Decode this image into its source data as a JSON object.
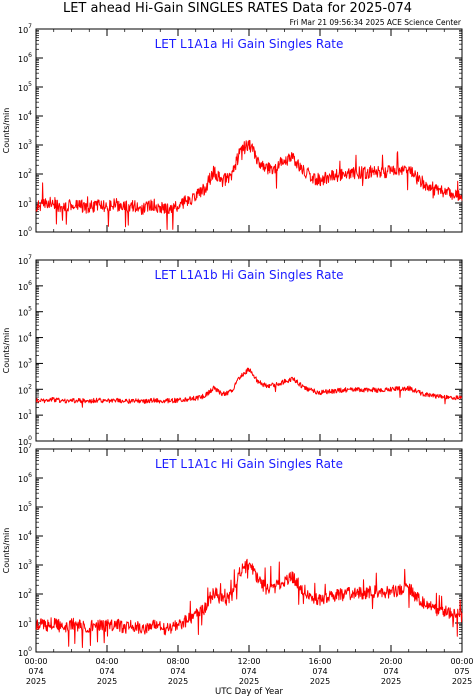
{
  "header": {
    "title": "LET ahead Hi-Gain SINGLES RATES Data for 2025-074",
    "timestamp": "Fri Mar 21 09:56:34 2025 ACE Science Center"
  },
  "colors": {
    "series": "#ff0000",
    "panel_title": "#1a1aff",
    "axes": "#000000"
  },
  "chart_data": [
    {
      "type": "line",
      "title": "LET L1A1a Hi Gain Singles Rate",
      "ylabel": "Counts/min",
      "yscale": "log",
      "ylim": [
        1,
        10000000
      ],
      "xlim_hours": [
        0,
        24
      ],
      "series": [
        {
          "values": [
            [
              0.0,
              8
            ],
            [
              0.5,
              9
            ],
            [
              1.0,
              10
            ],
            [
              1.5,
              7
            ],
            [
              2.0,
              9
            ],
            [
              2.5,
              8
            ],
            [
              3.0,
              7
            ],
            [
              3.5,
              9
            ],
            [
              4.0,
              8
            ],
            [
              4.5,
              9
            ],
            [
              5.0,
              7
            ],
            [
              5.5,
              8
            ],
            [
              6.0,
              6
            ],
            [
              6.5,
              9
            ],
            [
              7.0,
              7
            ],
            [
              7.5,
              6
            ],
            [
              8.0,
              8
            ],
            [
              8.5,
              12
            ],
            [
              9.0,
              18
            ],
            [
              9.5,
              30
            ],
            [
              10.0,
              120
            ],
            [
              10.5,
              60
            ],
            [
              11.0,
              80
            ],
            [
              11.5,
              600
            ],
            [
              12.0,
              1100
            ],
            [
              12.5,
              300
            ],
            [
              13.0,
              150
            ],
            [
              13.5,
              180
            ],
            [
              14.0,
              300
            ],
            [
              14.5,
              350
            ],
            [
              15.0,
              150
            ],
            [
              15.5,
              80
            ],
            [
              16.0,
              60
            ],
            [
              16.5,
              80
            ],
            [
              17.0,
              90
            ],
            [
              17.5,
              100
            ],
            [
              18.0,
              110
            ],
            [
              18.5,
              110
            ],
            [
              19.0,
              120
            ],
            [
              19.5,
              110
            ],
            [
              20.0,
              120
            ],
            [
              20.5,
              140
            ],
            [
              21.0,
              150
            ],
            [
              21.5,
              70
            ],
            [
              22.0,
              40
            ],
            [
              22.5,
              30
            ],
            [
              23.0,
              25
            ],
            [
              23.5,
              20
            ],
            [
              24.0,
              18
            ]
          ]
        }
      ]
    },
    {
      "type": "line",
      "title": "LET L1A1b Hi Gain Singles Rate",
      "ylabel": "Counts/min",
      "yscale": "log",
      "ylim": [
        1,
        10000000
      ],
      "xlim_hours": [
        0,
        24
      ],
      "series": [
        {
          "values": [
            [
              0.0,
              38
            ],
            [
              0.5,
              36
            ],
            [
              1.0,
              40
            ],
            [
              1.5,
              35
            ],
            [
              2.0,
              37
            ],
            [
              2.5,
              36
            ],
            [
              3.0,
              35
            ],
            [
              3.5,
              38
            ],
            [
              4.0,
              36
            ],
            [
              4.5,
              37
            ],
            [
              5.0,
              34
            ],
            [
              5.5,
              36
            ],
            [
              6.0,
              34
            ],
            [
              6.5,
              38
            ],
            [
              7.0,
              35
            ],
            [
              7.5,
              36
            ],
            [
              8.0,
              37
            ],
            [
              8.5,
              40
            ],
            [
              9.0,
              45
            ],
            [
              9.5,
              55
            ],
            [
              10.0,
              110
            ],
            [
              10.5,
              65
            ],
            [
              11.0,
              80
            ],
            [
              11.5,
              300
            ],
            [
              12.0,
              600
            ],
            [
              12.5,
              200
            ],
            [
              13.0,
              130
            ],
            [
              13.5,
              150
            ],
            [
              14.0,
              200
            ],
            [
              14.5,
              250
            ],
            [
              15.0,
              130
            ],
            [
              15.5,
              90
            ],
            [
              16.0,
              75
            ],
            [
              16.5,
              80
            ],
            [
              17.0,
              90
            ],
            [
              17.5,
              95
            ],
            [
              18.0,
              100
            ],
            [
              18.5,
              90
            ],
            [
              19.0,
              95
            ],
            [
              19.5,
              90
            ],
            [
              20.0,
              100
            ],
            [
              20.5,
              105
            ],
            [
              21.0,
              110
            ],
            [
              21.5,
              80
            ],
            [
              22.0,
              60
            ],
            [
              22.5,
              55
            ],
            [
              23.0,
              50
            ],
            [
              23.5,
              48
            ],
            [
              24.0,
              45
            ]
          ]
        }
      ]
    },
    {
      "type": "line",
      "title": "LET L1A1c Hi Gain Singles Rate",
      "ylabel": "Counts/min",
      "yscale": "log",
      "ylim": [
        1,
        10000000
      ],
      "xlim_hours": [
        0,
        24
      ],
      "series": [
        {
          "values": [
            [
              0.0,
              9
            ],
            [
              0.5,
              8
            ],
            [
              1.0,
              10
            ],
            [
              1.5,
              7
            ],
            [
              2.0,
              9
            ],
            [
              2.5,
              8
            ],
            [
              3.0,
              7
            ],
            [
              3.5,
              9
            ],
            [
              4.0,
              8
            ],
            [
              4.5,
              9
            ],
            [
              5.0,
              7
            ],
            [
              5.5,
              8
            ],
            [
              6.0,
              6
            ],
            [
              6.5,
              9
            ],
            [
              7.0,
              7
            ],
            [
              7.5,
              6
            ],
            [
              8.0,
              8
            ],
            [
              8.5,
              12
            ],
            [
              9.0,
              18
            ],
            [
              9.5,
              30
            ],
            [
              10.0,
              120
            ],
            [
              10.5,
              60
            ],
            [
              11.0,
              80
            ],
            [
              11.5,
              600
            ],
            [
              12.0,
              1100
            ],
            [
              12.5,
              300
            ],
            [
              13.0,
              150
            ],
            [
              13.5,
              180
            ],
            [
              14.0,
              300
            ],
            [
              14.5,
              380
            ],
            [
              15.0,
              150
            ],
            [
              15.5,
              80
            ],
            [
              16.0,
              60
            ],
            [
              16.5,
              80
            ],
            [
              17.0,
              90
            ],
            [
              17.5,
              100
            ],
            [
              18.0,
              110
            ],
            [
              18.5,
              110
            ],
            [
              19.0,
              120
            ],
            [
              19.5,
              110
            ],
            [
              20.0,
              120
            ],
            [
              20.5,
              140
            ],
            [
              21.0,
              170
            ],
            [
              21.5,
              70
            ],
            [
              22.0,
              40
            ],
            [
              22.5,
              30
            ],
            [
              23.0,
              25
            ],
            [
              23.5,
              20
            ],
            [
              24.0,
              18
            ]
          ]
        }
      ]
    }
  ],
  "y_ticks": [
    {
      "exp": 0,
      "label": "10",
      "sup": "0"
    },
    {
      "exp": 1,
      "label": "10",
      "sup": "1"
    },
    {
      "exp": 2,
      "label": "10",
      "sup": "2"
    },
    {
      "exp": 3,
      "label": "10",
      "sup": "3"
    },
    {
      "exp": 4,
      "label": "10",
      "sup": "4"
    },
    {
      "exp": 5,
      "label": "10",
      "sup": "5"
    },
    {
      "exp": 6,
      "label": "10",
      "sup": "6"
    },
    {
      "exp": 7,
      "label": "10",
      "sup": "7"
    }
  ],
  "x_ticks": [
    {
      "hour": 0,
      "time": "00:00",
      "doy": "074",
      "year": "2025"
    },
    {
      "hour": 4,
      "time": "04:00",
      "doy": "074",
      "year": "2025"
    },
    {
      "hour": 8,
      "time": "08:00",
      "doy": "074",
      "year": "2025"
    },
    {
      "hour": 12,
      "time": "12:00",
      "doy": "074",
      "year": "2025"
    },
    {
      "hour": 16,
      "time": "16:00",
      "doy": "074",
      "year": "2025"
    },
    {
      "hour": 20,
      "time": "20:00",
      "doy": "074",
      "year": "2025"
    },
    {
      "hour": 24,
      "time": "00:00",
      "doy": "075",
      "year": "2025"
    }
  ],
  "xlabel": "UTC Day of Year"
}
